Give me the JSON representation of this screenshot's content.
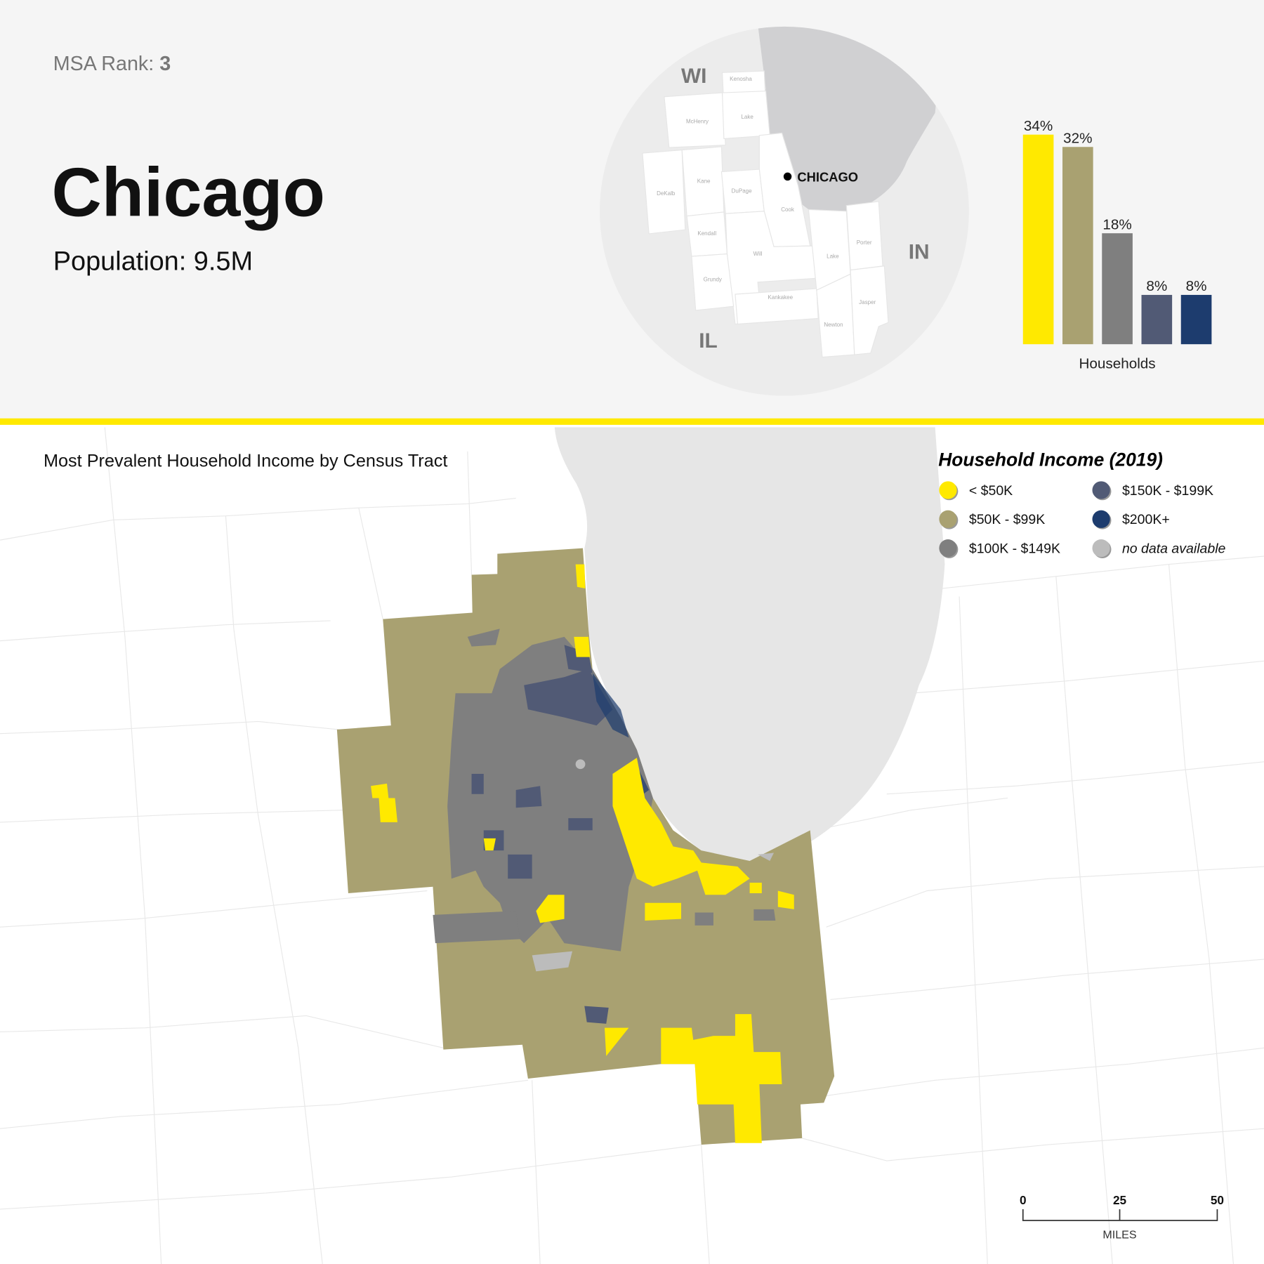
{
  "header": {
    "rank_label": "MSA Rank:",
    "rank_value": "3",
    "city": "Chicago",
    "population": "Population: 9.5M"
  },
  "inset_map": {
    "city_label": "CHICAGO",
    "states": [
      "WI",
      "IN",
      "IL"
    ],
    "counties": [
      "Kenosha",
      "McHenry",
      "Lake",
      "DeKalb",
      "Kane",
      "DuPage",
      "Cook",
      "Kendall",
      "Will",
      "Grundy",
      "Kankakee",
      "Lake",
      "Porter",
      "Jasper",
      "Newton"
    ]
  },
  "chart_data": {
    "type": "bar",
    "categories": [
      "< $50K",
      "$50K - $99K",
      "$100K - $149K",
      "$150K - $199K",
      "$200K+"
    ],
    "values": [
      34,
      32,
      18,
      8,
      8
    ],
    "data_labels": [
      "34%",
      "32%",
      "18%",
      "8%",
      "8%"
    ],
    "colors": [
      "#ffe900",
      "#a9a171",
      "#7f7f7f",
      "#515a75",
      "#1d3c6e"
    ],
    "xlabel": "Households",
    "ylim": [
      0,
      34
    ]
  },
  "main_map": {
    "title": "Most Prevalent Household Income by Census Tract",
    "legend_title": "Household Income (2019)",
    "legend": [
      {
        "label": "< $50K",
        "color": "#ffe900"
      },
      {
        "label": "$50K - $99K",
        "color": "#a9a171"
      },
      {
        "label": "$100K - $149K",
        "color": "#7f7f7f"
      },
      {
        "label": "$150K - $199K",
        "color": "#515a75"
      },
      {
        "label": "$200K+",
        "color": "#1d3c6e"
      },
      {
        "label": "no data available",
        "color": "#bcbcbc"
      }
    ],
    "scale_bar": {
      "ticks": [
        "0",
        "25",
        "50"
      ],
      "unit": "MILES"
    }
  },
  "colors": {
    "accent": "#ffe900",
    "lake": "#d0d0d2",
    "header_bg": "#f5f5f5"
  }
}
